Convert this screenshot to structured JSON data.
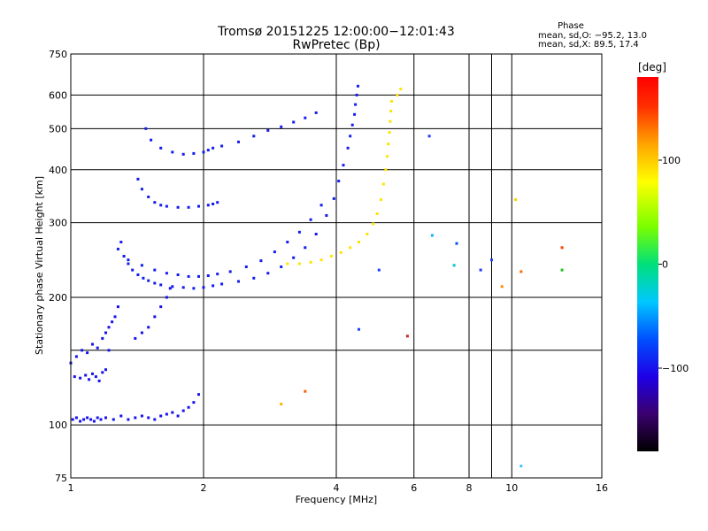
{
  "header": {
    "title_line1": "Tromsø 20151225 12:00:00−12:01:43",
    "title_line2": "RwPretec (Bp)",
    "phase_title": "Phase",
    "phase_line1": "mean, sd,O: −95.2, 13.0",
    "phase_line2": "mean, sd,X:  89.5, 17.4"
  },
  "chart_data": {
    "type": "scatter",
    "xlabel": "Frequency [MHz]",
    "ylabel": "Stationary phase Virtual Height [km]",
    "x_scale": "log",
    "y_scale": "log",
    "xlim": [
      1,
      16
    ],
    "ylim": [
      75,
      750
    ],
    "x_ticks": [
      1,
      2,
      4,
      6,
      8,
      10,
      16
    ],
    "x_tick_labels": [
      "1",
      "2",
      "4",
      "6",
      "8",
      "10",
      "16"
    ],
    "x_minor_ticks": [
      9
    ],
    "y_ticks": [
      75,
      100,
      200,
      300,
      400,
      500,
      600,
      750
    ],
    "y_tick_labels": [
      "75",
      "100",
      "200",
      "300",
      "400",
      "500",
      "600",
      "750"
    ],
    "y_minor_ticks": [
      150
    ],
    "grid": true,
    "colorbar": {
      "label": "[deg]",
      "range": [
        -180,
        180
      ],
      "ticks": [
        -100,
        0,
        100
      ],
      "tick_labels": [
        "−100",
        "0",
        "100"
      ]
    },
    "series": [
      {
        "trace": "E and low-F echoes (blue, ~ -100 deg)",
        "phase_deg": -100,
        "x": [
          1.01,
          1.03,
          1.05,
          1.07,
          1.09,
          1.11,
          1.13,
          1.15,
          1.17,
          1.2,
          1.25,
          1.3,
          1.35,
          1.4,
          1.45,
          1.5,
          1.55,
          1.6,
          1.65,
          1.7,
          1.75,
          1.8,
          1.85,
          1.9,
          1.95,
          1.02,
          1.05,
          1.08,
          1.1,
          1.12,
          1.14,
          1.16,
          1.18,
          1.2,
          1.22,
          1.0,
          1.03,
          1.06,
          1.09,
          1.12,
          1.15,
          1.18,
          1.2,
          1.22,
          1.24,
          1.26,
          1.28,
          1.4,
          1.45,
          1.5,
          1.55,
          1.6,
          1.65,
          1.68
        ],
        "y": [
          103,
          104,
          102,
          103,
          104,
          103,
          102,
          104,
          103,
          104,
          103,
          105,
          103,
          104,
          105,
          104,
          103,
          105,
          106,
          107,
          105,
          108,
          110,
          113,
          118,
          130,
          129,
          131,
          128,
          132,
          130,
          127,
          133,
          135,
          150,
          140,
          145,
          150,
          148,
          155,
          152,
          160,
          165,
          170,
          175,
          180,
          190,
          160,
          165,
          170,
          180,
          190,
          200,
          210
        ]
      },
      {
        "trace": "F-region O-mode trace (blue, ~ -95 deg)",
        "phase_deg": -95,
        "x": [
          1.3,
          1.32,
          1.35,
          1.38,
          1.42,
          1.46,
          1.5,
          1.55,
          1.6,
          1.7,
          1.8,
          1.9,
          2.0,
          2.1,
          2.2,
          2.4,
          2.6,
          2.8,
          3.0,
          3.2,
          3.4,
          3.6,
          3.8,
          3.95,
          4.05,
          4.15,
          4.25,
          4.3,
          4.35,
          4.4,
          4.42,
          4.45,
          4.48,
          1.28,
          1.35,
          1.45,
          1.55,
          1.65,
          1.75,
          1.85,
          1.95,
          2.05,
          2.15,
          2.3,
          2.5,
          2.7,
          2.9,
          3.1,
          3.3,
          3.5,
          3.7,
          1.48,
          1.52,
          1.6,
          1.7,
          1.8,
          1.9,
          2.0,
          2.05,
          2.1,
          2.2,
          2.4,
          2.6,
          2.8,
          3.0,
          3.2,
          3.4,
          3.6,
          1.42,
          1.45,
          1.5,
          1.55,
          1.6,
          1.65,
          1.75,
          1.85,
          1.95,
          2.05,
          2.1,
          2.15
        ],
        "y": [
          270,
          250,
          240,
          232,
          226,
          222,
          219,
          216,
          214,
          212,
          211,
          210,
          211,
          213,
          215,
          218,
          222,
          228,
          236,
          248,
          262,
          282,
          312,
          342,
          376,
          410,
          450,
          480,
          510,
          540,
          570,
          600,
          630,
          260,
          245,
          238,
          232,
          228,
          226,
          224,
          224,
          225,
          227,
          230,
          236,
          244,
          256,
          270,
          285,
          305,
          330,
          500,
          470,
          450,
          440,
          435,
          437,
          440,
          445,
          450,
          455,
          465,
          480,
          495,
          505,
          518,
          530,
          545,
          380,
          360,
          345,
          335,
          330,
          328,
          326,
          326,
          328,
          330,
          332,
          335
        ]
      },
      {
        "trace": "F-region X-mode trace (yellow, ~ +90 deg)",
        "phase_deg": 90,
        "x": [
          3.1,
          3.3,
          3.5,
          3.7,
          3.9,
          4.1,
          4.3,
          4.5,
          4.7,
          4.85,
          4.95,
          5.05,
          5.12,
          5.18,
          5.22,
          5.25,
          5.28,
          5.3,
          5.32,
          5.34,
          5.5,
          5.6
        ],
        "y": [
          240,
          240,
          242,
          245,
          250,
          255,
          262,
          270,
          282,
          298,
          315,
          340,
          370,
          400,
          430,
          460,
          490,
          520,
          550,
          580,
          600,
          620
        ]
      },
      {
        "trace": "scattered points",
        "phase_deg": null,
        "x": [
          6.5,
          6.6,
          7.5,
          7.4,
          8.5,
          9.0,
          9.5,
          10.5,
          10.2,
          13.0,
          13.0,
          5.0,
          4.5,
          5.8,
          3.4,
          3.0,
          10.5
        ],
        "y": [
          480,
          280,
          268,
          238,
          232,
          245,
          212,
          230,
          340,
          262,
          232,
          232,
          168,
          162,
          120,
          112,
          80
        ]
      }
    ]
  }
}
